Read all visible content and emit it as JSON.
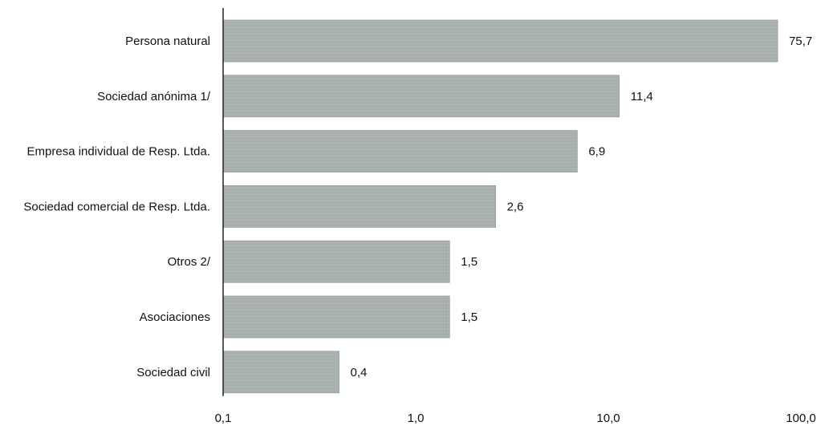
{
  "chart_data": {
    "type": "bar",
    "orientation": "horizontal",
    "xscale": "log",
    "xlim": [
      0.1,
      100.0
    ],
    "xticks": [
      "0,1",
      "1,0",
      "10,0",
      "100,0"
    ],
    "categories": [
      "Persona natural",
      "Sociedad anónima 1/",
      "Empresa individual de Resp. Ltda.",
      "Sociedad comercial de Resp. Ltda.",
      "Otros 2/",
      "Asociaciones",
      "Sociedad civil"
    ],
    "values": [
      75.7,
      11.4,
      6.9,
      2.6,
      1.5,
      1.5,
      0.4
    ],
    "value_labels": [
      "75,7",
      "11,4",
      "6,9",
      "2,6",
      "1,5",
      "1,5",
      "0,4"
    ],
    "grid": false,
    "bar_color": "#a9b1ae"
  }
}
